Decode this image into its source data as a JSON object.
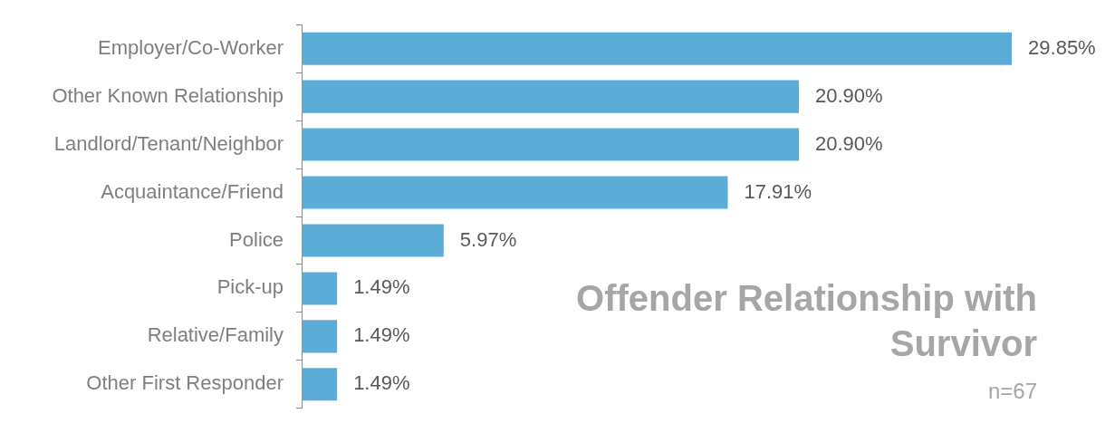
{
  "chart_data": {
    "type": "bar",
    "orientation": "horizontal",
    "title": "Offender Relationship with Survivor",
    "subtitle": "n=67",
    "categories": [
      "Employer/Co-Worker",
      "Other Known Relationship",
      "Landlord/Tenant/Neighbor",
      "Acquaintance/Friend",
      "Police",
      "Pick-up",
      "Relative/Family",
      "Other First Responder"
    ],
    "values": [
      29.85,
      20.9,
      20.9,
      17.91,
      5.97,
      1.49,
      1.49,
      1.49
    ],
    "value_labels": [
      "29.85%",
      "20.90%",
      "20.90%",
      "17.91%",
      "5.97%",
      "1.49%",
      "1.49%",
      "1.49%"
    ],
    "color": "#5badd8"
  }
}
